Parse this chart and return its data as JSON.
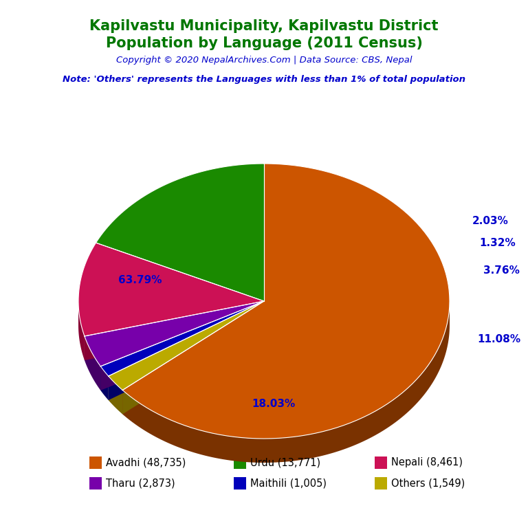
{
  "title_line1": "Kapilvastu Municipality, Kapilvastu District",
  "title_line2": "Population by Language (2011 Census)",
  "title_color": "#007700",
  "copyright_text": "Copyright © 2020 NepalArchives.Com | Data Source: CBS, Nepal",
  "copyright_color": "#0000cc",
  "note_text": "Note: 'Others' represents the Languages with less than 1% of total population",
  "note_color": "#0000cc",
  "labels": [
    "Avadhi (48,735)",
    "Urdu (13,771)",
    "Nepali (8,461)",
    "Tharu (2,873)",
    "Maithili (1,005)",
    "Others (1,549)"
  ],
  "values": [
    48735,
    13771,
    8461,
    2873,
    1005,
    1549
  ],
  "percentages": [
    "63.79%",
    "18.03%",
    "11.08%",
    "3.76%",
    "1.32%",
    "2.03%"
  ],
  "colors": [
    "#cc5500",
    "#1a8a00",
    "#cc1155",
    "#7700aa",
    "#0000bb",
    "#bbaa00"
  ],
  "shadow_colors": [
    "#7a3200",
    "#0d5000",
    "#880033",
    "#440066",
    "#000066",
    "#776600"
  ],
  "background_color": "#ffffff"
}
